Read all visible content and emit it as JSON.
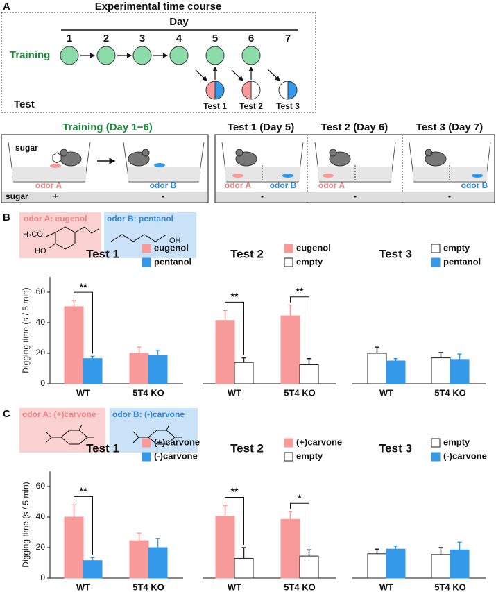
{
  "panel_a": {
    "label": "A",
    "title": "Experimental time course",
    "day_label": "Day",
    "days": [
      "1",
      "2",
      "3",
      "4",
      "5",
      "6",
      "7"
    ],
    "training_label": "Training",
    "test_label": "Test",
    "tests": [
      "Test 1",
      "Test 2",
      "Test 3"
    ],
    "training_panel": {
      "title": "Training (Day 1−6)",
      "sugar_tag": "sugar",
      "odor_a": "odor A",
      "odor_b": "odor B",
      "row_label": "sugar",
      "sugar_a": "+",
      "sugar_b": "-"
    },
    "test_panels": [
      {
        "title": "Test 1 (Day 5)",
        "odors": [
          "odor A",
          "odor B"
        ],
        "sugar": "-"
      },
      {
        "title": "Test 2 (Day 6)",
        "odors": [
          "odor A"
        ],
        "sugar": "-"
      },
      {
        "title": "Test 3 (Day 7)",
        "odors": [
          "odor B"
        ],
        "sugar": "-"
      }
    ]
  },
  "panel_b": {
    "label": "B",
    "odor_a": "odor A: eugenol",
    "odor_b": "odor B: pentanol",
    "structure_labels": [
      "H₃CO",
      "HO",
      "OH"
    ]
  },
  "panel_c": {
    "label": "C",
    "odor_a": "odor A: (+)carvone",
    "odor_b": "odor B: (-)carvone"
  },
  "chart_data": [
    {
      "type": "bar",
      "title": "Test 1",
      "ylabel": "Digging time (s / 5 min)",
      "categories": [
        "WT",
        "5T4 KO"
      ],
      "series": [
        {
          "name": "eugenol",
          "color": "#f99a9a",
          "values": [
            50.5,
            20
          ],
          "errors": [
            4,
            4
          ]
        },
        {
          "name": "pentanol",
          "color": "#3399e8",
          "values": [
            16.5,
            18.5
          ],
          "errors": [
            1.5,
            3.5
          ]
        }
      ],
      "significance": [
        "**",
        null
      ],
      "ylim": [
        0,
        70
      ],
      "yticks": [
        0,
        20,
        40,
        60
      ]
    },
    {
      "type": "bar",
      "title": "Test 2",
      "categories": [
        "WT",
        "5T4 KO"
      ],
      "series": [
        {
          "name": "eugenol",
          "color": "#f99a9a",
          "values": [
            41.5,
            44.5
          ],
          "errors": [
            6.5,
            7
          ]
        },
        {
          "name": "empty",
          "color": "#ffffff",
          "values": [
            14,
            12.5
          ],
          "errors": [
            3,
            4
          ]
        }
      ],
      "significance": [
        "**",
        "**"
      ],
      "ylim": [
        0,
        70
      ]
    },
    {
      "type": "bar",
      "title": "Test 3",
      "categories": [
        "WT",
        "5T4 KO"
      ],
      "series": [
        {
          "name": "empty",
          "color": "#ffffff",
          "values": [
            20,
            17
          ],
          "errors": [
            4,
            3.5
          ]
        },
        {
          "name": "pentanol",
          "color": "#3399e8",
          "values": [
            15,
            16
          ],
          "errors": [
            1.5,
            3.5
          ]
        }
      ],
      "significance": [
        null,
        null
      ],
      "ylim": [
        0,
        70
      ]
    },
    {
      "type": "bar",
      "title": "Test 1",
      "ylabel": "Digging time (s / 5 min)",
      "categories": [
        "WT",
        "5T4 KO"
      ],
      "series": [
        {
          "name": "(+)carvone",
          "color": "#f99a9a",
          "values": [
            40,
            24.5
          ],
          "errors": [
            8,
            5
          ]
        },
        {
          "name": "(-)carvone",
          "color": "#3399e8",
          "values": [
            11.5,
            20
          ],
          "errors": [
            2,
            6
          ]
        }
      ],
      "significance": [
        "**",
        null
      ],
      "ylim": [
        0,
        70
      ],
      "yticks": [
        0,
        20,
        40,
        60
      ]
    },
    {
      "type": "bar",
      "title": "Test 2",
      "categories": [
        "WT",
        "5T4 KO"
      ],
      "series": [
        {
          "name": "(+)carvone",
          "color": "#f99a9a",
          "values": [
            40.5,
            38.5
          ],
          "errors": [
            7,
            5
          ]
        },
        {
          "name": "empty",
          "color": "#ffffff",
          "values": [
            13,
            14.5
          ],
          "errors": [
            7,
            4
          ]
        }
      ],
      "significance": [
        "**",
        "*"
      ],
      "ylim": [
        0,
        70
      ]
    },
    {
      "type": "bar",
      "title": "Test 3",
      "categories": [
        "WT",
        "5T4 KO"
      ],
      "series": [
        {
          "name": "empty",
          "color": "#ffffff",
          "values": [
            16,
            15.5
          ],
          "errors": [
            3,
            4.5
          ]
        },
        {
          "name": "(-)carvone",
          "color": "#3399e8",
          "values": [
            19,
            18.5
          ],
          "errors": [
            2,
            5
          ]
        }
      ],
      "significance": [
        null,
        null
      ],
      "ylim": [
        0,
        70
      ]
    }
  ]
}
